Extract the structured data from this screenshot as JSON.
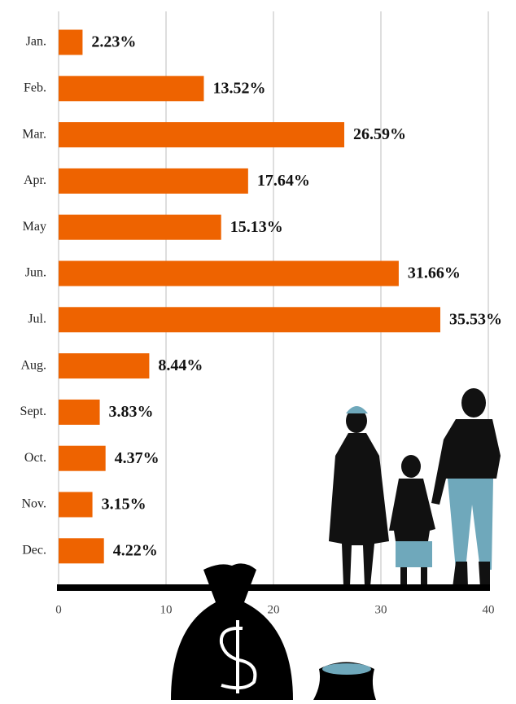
{
  "chart_data": {
    "type": "bar",
    "orientation": "horizontal",
    "categories": [
      "Jan.",
      "Feb.",
      "Mar.",
      "Apr.",
      "May",
      "Jun.",
      "Jul.",
      "Aug.",
      "Sept.",
      "Oct.",
      "Nov.",
      "Dec."
    ],
    "values": [
      2.23,
      13.52,
      26.59,
      17.64,
      15.13,
      31.66,
      35.53,
      8.44,
      3.83,
      4.37,
      3.15,
      4.22
    ],
    "value_labels": [
      "2.23%",
      "13.52%",
      "26.59%",
      "17.64%",
      "15.13%",
      "31.66%",
      "35.53%",
      "8.44%",
      "3.83%",
      "4.37%",
      "3.15%",
      "4.22%"
    ],
    "color": "#ee6300",
    "xlim": [
      0,
      40
    ],
    "xticks": [
      0,
      10,
      20,
      30,
      40
    ],
    "grid": true
  }
}
